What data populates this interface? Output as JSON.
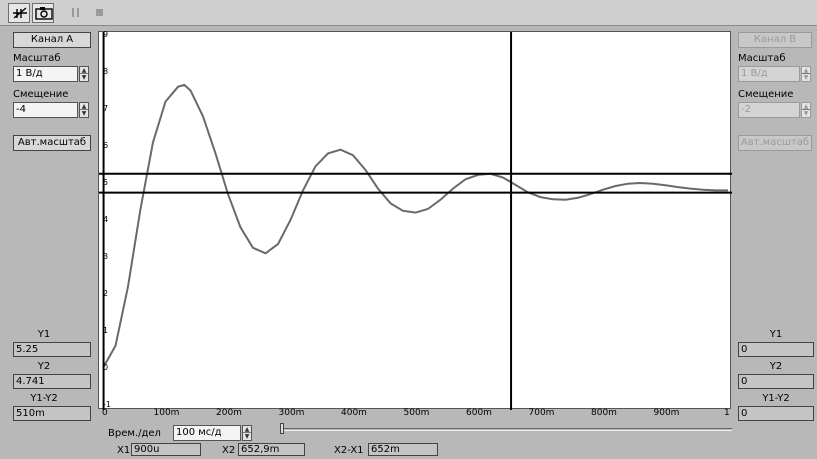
{
  "toolbar": {
    "icons": [
      "cursor-icon",
      "camera-icon",
      "pause-icon",
      "stop-icon"
    ]
  },
  "channel_a": {
    "button": "Канал A",
    "scale_label": "Масштаб",
    "scale_value": "1 В/д",
    "offset_label": "Смещение",
    "offset_value": "-4",
    "auto_scale": "Авт.масштаб"
  },
  "channel_b": {
    "button": "Канал B",
    "scale_label": "Масштаб",
    "scale_value": "1 В/д",
    "offset_label": "Смещение",
    "offset_value": "-2",
    "auto_scale": "Авт.масштаб"
  },
  "measure_a": {
    "y1_label": "Y1",
    "y1": "5.25",
    "y2_label": "Y2",
    "y2": "4.741",
    "dy_label": "Y1-Y2",
    "dy": "510m"
  },
  "measure_b": {
    "y1_label": "Y1",
    "y1": "0",
    "y2_label": "Y2",
    "y2": "0",
    "dy_label": "Y1-Y2",
    "dy": "0"
  },
  "time": {
    "label": "Врем./дел",
    "value": "100 мс/д"
  },
  "cursors": {
    "x1_label": "X1",
    "x1": "900u",
    "x2_label": "X2",
    "x2": "652,9m",
    "dx_label": "X2-X1",
    "dx": "652m"
  },
  "chart_data": {
    "type": "line",
    "x_ticks": [
      "0",
      "100m",
      "200m",
      "300m",
      "400m",
      "500m",
      "600m",
      "700m",
      "800m",
      "900m",
      "1"
    ],
    "y_ticks": [
      "-1",
      "0",
      "1",
      "2",
      "3",
      "4",
      "5",
      "6",
      "7",
      "8",
      "9"
    ],
    "xlim": [
      0,
      1
    ],
    "ylim": [
      -1,
      9
    ],
    "grid": false,
    "colors": {
      "trace": "#6a6a6a",
      "cursor": "#000000"
    },
    "series": [
      {
        "x": [
          0,
          0.02,
          0.04,
          0.06,
          0.08,
          0.1,
          0.12,
          0.13,
          0.14,
          0.16,
          0.18,
          0.2,
          0.22,
          0.24,
          0.26,
          0.28,
          0.3,
          0.32,
          0.34,
          0.36,
          0.38,
          0.4,
          0.42,
          0.44,
          0.46,
          0.48,
          0.5,
          0.52,
          0.54,
          0.56,
          0.58,
          0.6,
          0.62,
          0.64,
          0.66,
          0.68,
          0.7,
          0.72,
          0.74,
          0.76,
          0.78,
          0.8,
          0.82,
          0.84,
          0.86,
          0.88,
          0.9,
          0.92,
          0.94,
          0.96,
          0.98,
          1.0
        ],
        "values": [
          0.0,
          0.6,
          2.2,
          4.3,
          6.1,
          7.2,
          7.6,
          7.65,
          7.5,
          6.8,
          5.8,
          4.7,
          3.8,
          3.25,
          3.1,
          3.35,
          4.0,
          4.8,
          5.45,
          5.8,
          5.9,
          5.75,
          5.35,
          4.85,
          4.45,
          4.25,
          4.2,
          4.3,
          4.55,
          4.85,
          5.1,
          5.22,
          5.25,
          5.15,
          4.95,
          4.75,
          4.62,
          4.56,
          4.55,
          4.6,
          4.7,
          4.82,
          4.92,
          4.98,
          5.0,
          4.98,
          4.94,
          4.89,
          4.85,
          4.82,
          4.8,
          4.8
        ]
      }
    ],
    "cursors": {
      "x": [
        0.0009,
        0.6529
      ],
      "y": [
        5.25,
        4.741
      ]
    }
  }
}
